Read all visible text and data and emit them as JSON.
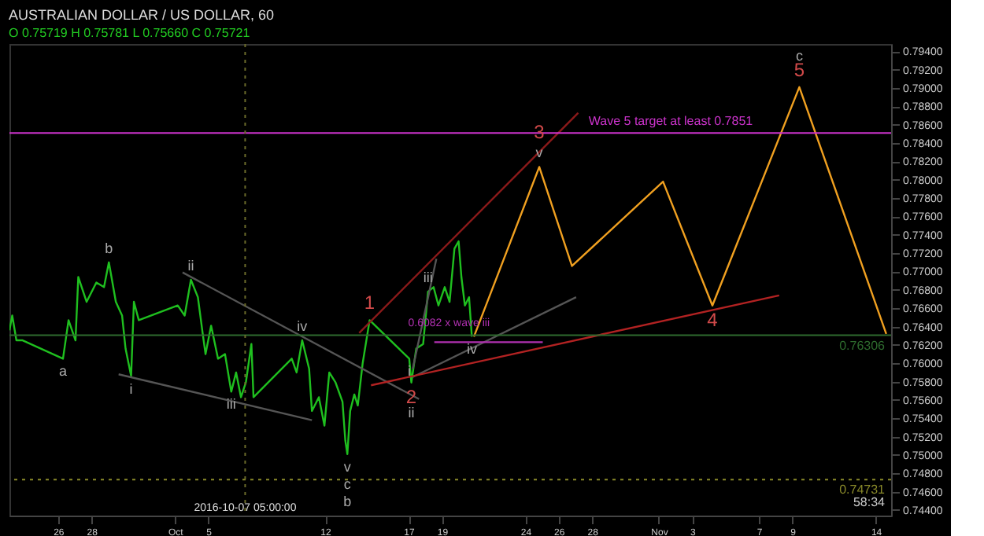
{
  "chart_data": {
    "type": "line",
    "title": "AUSTRALIAN DOLLAR / US DOLLAR, 60",
    "subtitle": "O 0.75719 H 0.75781 L 0.75660 C 0.75721",
    "xlim": [
      "2016-09-23T02:00",
      "2016-11-14T22:00"
    ],
    "ylim": [
      0.7434,
      0.7948
    ],
    "xticks": [
      {
        "value": "2016-09-26",
        "label": "26"
      },
      {
        "value": "2016-09-28",
        "label": "28"
      },
      {
        "value": "2016-10-03",
        "label": "Oct"
      },
      {
        "value": "2016-10-05",
        "label": "5"
      },
      {
        "value": "2016-10-12",
        "label": "12"
      },
      {
        "value": "2016-10-17",
        "label": "17"
      },
      {
        "value": "2016-10-19",
        "label": "19"
      },
      {
        "value": "2016-10-24",
        "label": "24"
      },
      {
        "value": "2016-10-26",
        "label": "26"
      },
      {
        "value": "2016-10-28",
        "label": "28"
      },
      {
        "value": "2016-11-01",
        "label": "Nov"
      },
      {
        "value": "2016-11-03",
        "label": "3"
      },
      {
        "value": "2016-11-07",
        "label": "7"
      },
      {
        "value": "2016-11-09",
        "label": "9"
      },
      {
        "value": "2016-11-14",
        "label": "14"
      }
    ],
    "yticks": [
      {
        "value": 0.744,
        "label": "0.74400"
      },
      {
        "value": 0.746,
        "label": "0.74600"
      },
      {
        "value": 0.748,
        "label": "0.74800"
      },
      {
        "value": 0.75,
        "label": "0.75000"
      },
      {
        "value": 0.752,
        "label": "0.75200"
      },
      {
        "value": 0.754,
        "label": "0.75400"
      },
      {
        "value": 0.756,
        "label": "0.75600"
      },
      {
        "value": 0.758,
        "label": "0.75800"
      },
      {
        "value": 0.76,
        "label": "0.76000"
      },
      {
        "value": 0.762,
        "label": "0.76200"
      },
      {
        "value": 0.764,
        "label": "0.76400"
      },
      {
        "value": 0.766,
        "label": "0.76600"
      },
      {
        "value": 0.768,
        "label": "0.76800"
      },
      {
        "value": 0.77,
        "label": "0.77000"
      },
      {
        "value": 0.772,
        "label": "0.77200"
      },
      {
        "value": 0.774,
        "label": "0.77400"
      },
      {
        "value": 0.776,
        "label": "0.77600"
      },
      {
        "value": 0.778,
        "label": "0.77800"
      },
      {
        "value": 0.78,
        "label": "0.78000"
      },
      {
        "value": 0.782,
        "label": "0.78200"
      },
      {
        "value": 0.784,
        "label": "0.78400"
      },
      {
        "value": 0.786,
        "label": "0.78600"
      },
      {
        "value": 0.788,
        "label": "0.78800"
      },
      {
        "value": 0.79,
        "label": "0.79000"
      },
      {
        "value": 0.792,
        "label": "0.79200"
      },
      {
        "value": 0.794,
        "label": "0.79400"
      }
    ],
    "grid": false,
    "marker": "none",
    "line_style": "solid",
    "series": [
      {
        "color": "#1fbf1f",
        "x": [
          "2016-09-23T02:00",
          "2016-09-23T06:00",
          "2016-09-23T12:00",
          "2016-09-23T21:00",
          "2016-09-26T07:00",
          "2016-09-26T15:00",
          "2016-09-27T01:00",
          "2016-09-27T05:00",
          "2016-09-27T17:00",
          "2016-09-28T07:00",
          "2016-09-28T18:00",
          "2016-09-29T01:00",
          "2016-09-29T11:00",
          "2016-09-29T20:00",
          "2016-09-30T01:00",
          "2016-09-30T09:00",
          "2016-09-30T13:00",
          "2016-09-30T20:00",
          "2016-10-03T04:00",
          "2016-10-03T14:00",
          "2016-10-03T23:00",
          "2016-10-04T09:00",
          "2016-10-04T16:00",
          "2016-10-04T20:00",
          "2016-10-05T04:00",
          "2016-10-05T14:00",
          "2016-10-06T00:00",
          "2016-10-06T09:00",
          "2016-10-06T16:00",
          "2016-10-06T23:00",
          "2016-10-07T06:00",
          "2016-10-07T14:00",
          "2016-10-07T17:00",
          "2016-10-10T00:00",
          "2016-10-10T07:00",
          "2016-10-10T15:00",
          "2016-10-11T01:00",
          "2016-10-11T05:00",
          "2016-10-11T15:00",
          "2016-10-11T23:00",
          "2016-10-12T06:00",
          "2016-10-12T15:00",
          "2016-10-13T01:00",
          "2016-10-13T05:00",
          "2016-10-13T08:00",
          "2016-10-13T12:00",
          "2016-10-13T18:00",
          "2016-10-13T23:00",
          "2016-10-14T06:00",
          "2016-10-14T16:00",
          "2016-10-17T01:00",
          "2016-10-17T04:00",
          "2016-10-17T11:00",
          "2016-10-17T21:00",
          "2016-10-18T04:00",
          "2016-10-18T12:00",
          "2016-10-18T19:00",
          "2016-10-19T04:00",
          "2016-10-19T11:00",
          "2016-10-19T18:00",
          "2016-10-20T00:00",
          "2016-10-20T04:00",
          "2016-10-20T09:00",
          "2016-10-20T15:00",
          "2016-10-20T19:00"
        ],
        "values": [
          0.7636,
          0.7652,
          0.7625,
          0.7625,
          0.7605,
          0.7647,
          0.7625,
          0.7694,
          0.7667,
          0.7688,
          0.7683,
          0.771,
          0.7667,
          0.7652,
          0.7616,
          0.7586,
          0.7667,
          0.7647,
          0.7663,
          0.7652,
          0.7691,
          0.7672,
          0.7632,
          0.761,
          0.7641,
          0.7605,
          0.761,
          0.7569,
          0.759,
          0.7563,
          0.7579,
          0.7621,
          0.7563,
          0.7605,
          0.759,
          0.7625,
          0.7594,
          0.7548,
          0.7563,
          0.7532,
          0.759,
          0.7579,
          0.7558,
          0.7516,
          0.7501,
          0.7548,
          0.7566,
          0.7554,
          0.76,
          0.7647,
          0.7605,
          0.7579,
          0.7616,
          0.7621,
          0.7678,
          0.7683,
          0.7663,
          0.7683,
          0.7667,
          0.7725,
          0.7733,
          0.7694,
          0.7663,
          0.7672,
          0.7629
        ]
      },
      {
        "color": "#f0a020",
        "x": [
          "2016-10-20T22:00",
          "2016-10-24T20:00",
          "2016-10-26T19:00",
          "2016-11-01T06:00",
          "2016-11-04T05:00",
          "2016-11-09T10:00",
          "2016-11-14T15:00"
        ],
        "values": [
          0.7629,
          0.7814,
          0.7706,
          0.7798,
          0.7663,
          0.7901,
          0.7632
        ]
      },
      {
        "color": "#555555",
        "x": [
          "2016-10-03T11:00",
          "2016-10-17T15:00"
        ],
        "values": [
          0.7699,
          0.7561
        ]
      },
      {
        "color": "#555555",
        "x": [
          "2016-09-29T15:00",
          "2016-10-11T05:00"
        ],
        "values": [
          0.7588,
          0.7538
        ]
      },
      {
        "color": "#555555",
        "x": [
          "2016-10-17T06:00",
          "2016-10-27T01:00"
        ],
        "values": [
          0.7585,
          0.7672
        ]
      },
      {
        "color": "#555555",
        "x": [
          "2016-10-17T06:00",
          "2016-10-18T16:00"
        ],
        "values": [
          0.7594,
          0.7714
        ]
      },
      {
        "color": "#8b1a1a",
        "x": [
          "2016-10-14T01:00",
          "2016-10-27T04:00"
        ],
        "values": [
          0.7633,
          0.7873
        ]
      },
      {
        "color": "#b22222",
        "x": [
          "2016-10-14T18:00",
          "2016-11-08T05:00"
        ],
        "values": [
          0.7576,
          0.7674
        ]
      },
      {
        "color": "#b030b0",
        "x": [
          "2016-10-18T13:00",
          "2016-10-25T01:00"
        ],
        "values": [
          0.7623,
          0.7623
        ]
      }
    ],
    "ref_lines": [
      {
        "axis": "y",
        "value": 0.7851,
        "label": "Wave 5 target at least 0.7851",
        "color": "#cc33cc"
      },
      {
        "axis": "y",
        "value": 0.76306,
        "label": "0.76306",
        "color": "#2e6b2e"
      },
      {
        "axis": "y",
        "value": 0.74731,
        "label": "0.74731",
        "color": "#8a8a2a",
        "line_style": "dotted"
      },
      {
        "axis": "x",
        "value": "2016-10-07T05:00",
        "label": "2016-10-07 05:00:00",
        "color": "#6b6b2a",
        "line_style": "dotted"
      }
    ],
    "annotations": [
      "58:34",
      {
        "text": "a",
        "x": "2016-09-26T07:00",
        "y": 0.7605
      },
      {
        "text": "b",
        "x": "2016-09-29T01:00",
        "y": 0.771
      },
      {
        "text": "i",
        "x": "2016-09-30T09:00",
        "y": 0.7586
      },
      {
        "text": "ii",
        "x": "2016-10-03T23:00",
        "y": 0.7691
      },
      {
        "text": "iii",
        "x": "2016-10-06T09:00",
        "y": 0.7569
      },
      {
        "text": "iv",
        "x": "2016-10-10T15:00",
        "y": 0.7625
      },
      {
        "text": "v",
        "x": "2016-10-13T08:00",
        "y": 0.7501
      },
      {
        "text": "c",
        "x": "2016-10-13T08:00",
        "y": 0.7501
      },
      {
        "text": "b",
        "x": "2016-10-13T08:00",
        "y": 0.7501
      },
      {
        "text": "1",
        "x": "2016-10-14T16:00",
        "y": 0.7647
      },
      {
        "text": "2",
        "x": "2016-10-17T04:00",
        "y": 0.7579
      },
      {
        "text": "ii",
        "x": "2016-10-17T04:00",
        "y": 0.7579
      },
      {
        "text": "i",
        "x": "2016-10-17T01:00",
        "y": 0.7605
      },
      {
        "text": "iii",
        "x": "2016-10-18T04:00",
        "y": 0.7678
      },
      {
        "text": "0.6082 x wave iii",
        "x": "2016-10-19T10:00",
        "y": 0.7623
      },
      {
        "text": "iv",
        "x": "2016-10-20T19:00",
        "y": 0.7629
      },
      {
        "text": "v",
        "x": "2016-10-24T20:00",
        "y": 0.7814
      },
      {
        "text": "3",
        "x": "2016-10-24T20:00",
        "y": 0.7814
      },
      {
        "text": "4",
        "x": "2016-11-04T05:00",
        "y": 0.7663
      },
      {
        "text": "5",
        "x": "2016-11-09T10:00",
        "y": 0.7901
      },
      {
        "text": "c",
        "x": "2016-11-09T10:00",
        "y": 0.7901
      }
    ]
  }
}
